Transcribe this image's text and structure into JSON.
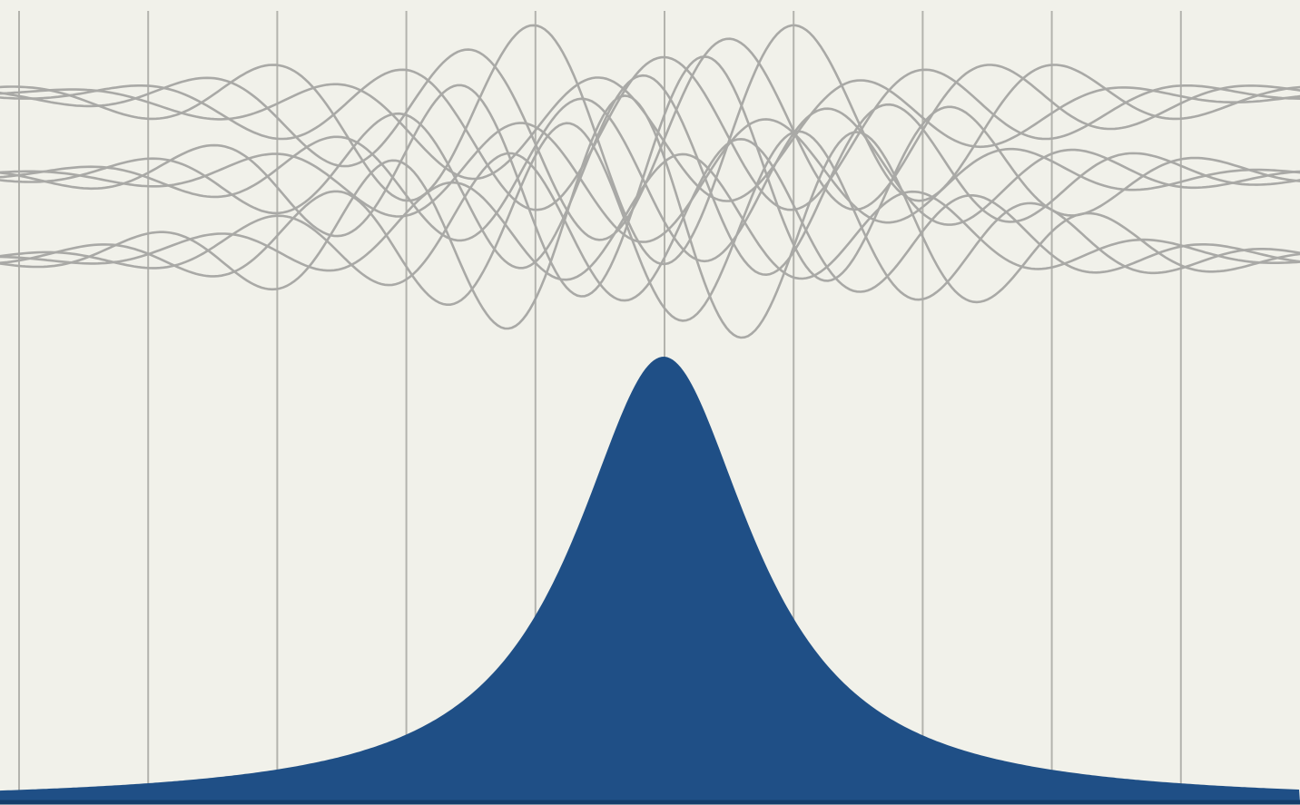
{
  "diagram": {
    "colors": {
      "background": "#f1f1ea",
      "grid": "#b3b3ad",
      "waves": "#a9a9a6",
      "distribution": "#1f4f86"
    },
    "grid": {
      "vertical_lines": 10
    },
    "waves": {
      "count": 12,
      "rest_levels": 3
    },
    "distribution": {
      "shape": "lorentzian-peak"
    }
  }
}
